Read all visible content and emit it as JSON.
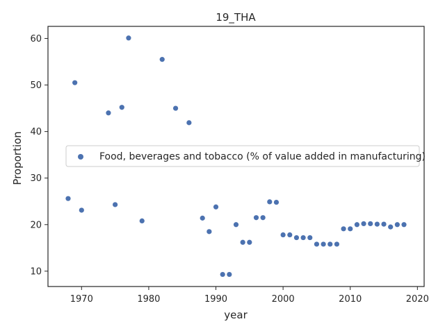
{
  "chart_data": {
    "type": "scatter",
    "title": "19_THA",
    "xlabel": "year",
    "ylabel": "Proportion",
    "xlim": [
      1965,
      2021
    ],
    "ylim": [
      6.7,
      62.6
    ],
    "xticks": [
      1970,
      1980,
      1990,
      2000,
      2010,
      2020
    ],
    "yticks": [
      10,
      20,
      30,
      40,
      50,
      60
    ],
    "grid": false,
    "legend_position": "center-right",
    "colors": {
      "series": "#4c72b0",
      "axis": "#262626",
      "legend_border": "#cccccc"
    },
    "series": [
      {
        "name": "Food, beverages and tobacco (% of value added in manufacturing)",
        "x": [
          1968,
          1969,
          1970,
          1974,
          1975,
          1976,
          1977,
          1979,
          1982,
          1984,
          1986,
          1988,
          1989,
          1990,
          1991,
          1992,
          1993,
          1994,
          1995,
          1996,
          1997,
          1998,
          1999,
          2000,
          2001,
          2002,
          2003,
          2004,
          2005,
          2006,
          2007,
          2008,
          2009,
          2010,
          2011,
          2012,
          2013,
          2014,
          2015,
          2016,
          2017,
          2018
        ],
        "y": [
          25.6,
          50.5,
          23.1,
          44.0,
          24.3,
          45.2,
          60.1,
          20.8,
          55.5,
          45.0,
          41.9,
          21.4,
          18.5,
          23.8,
          9.3,
          9.3,
          20.0,
          16.2,
          16.2,
          21.5,
          21.5,
          24.9,
          24.8,
          17.8,
          17.8,
          17.2,
          17.2,
          17.2,
          15.8,
          15.8,
          15.8,
          15.8,
          19.1,
          19.1,
          20.0,
          20.2,
          20.2,
          20.1,
          20.1,
          19.5,
          20.0,
          20.0
        ]
      }
    ]
  }
}
